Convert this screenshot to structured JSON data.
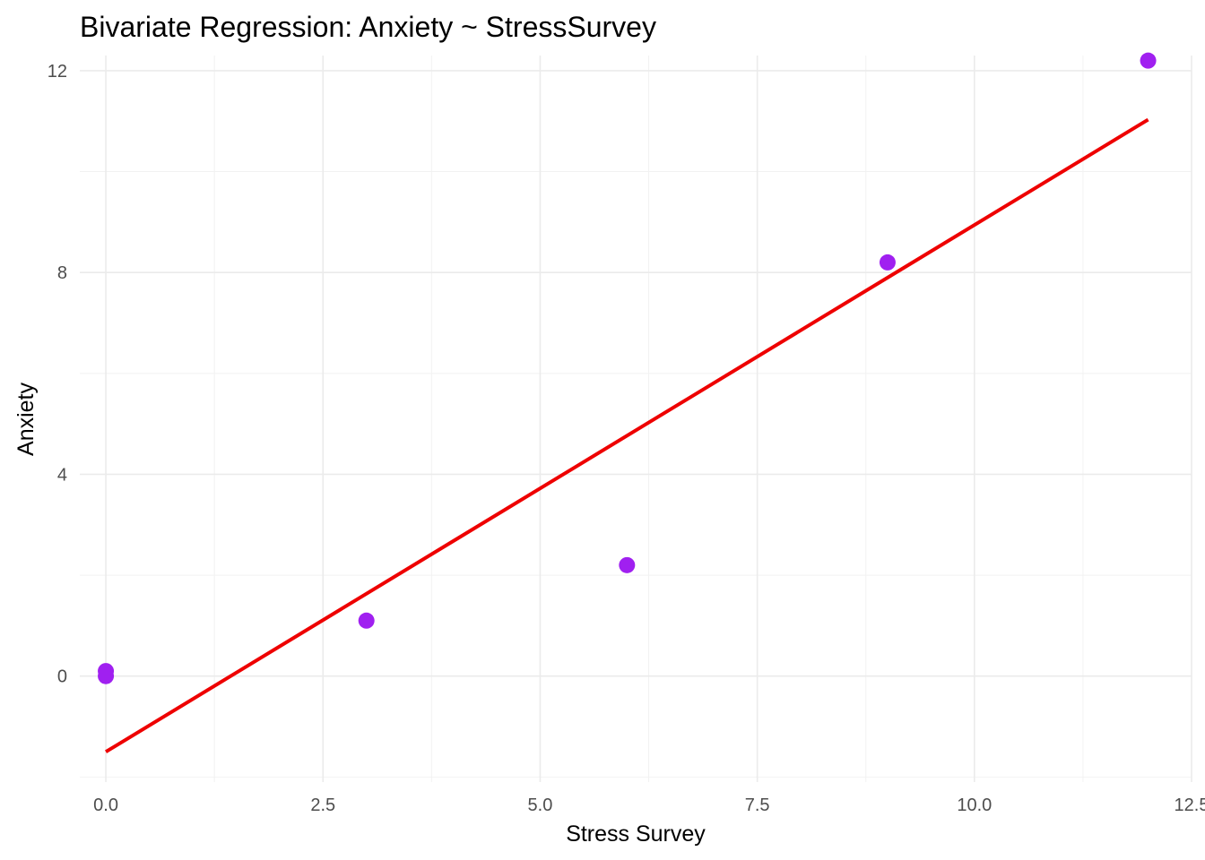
{
  "chart_data": {
    "type": "scatter",
    "title": "Bivariate Regression: Anxiety ~ StressSurvey",
    "xlabel": "Stress Survey",
    "ylabel": "Anxiety",
    "xlim": [
      -0.3,
      12.5
    ],
    "ylim": [
      -2.1,
      12.3
    ],
    "x_ticks": [
      0.0,
      2.5,
      5.0,
      7.5,
      10.0,
      12.5
    ],
    "x_tick_labels": [
      "0.0",
      "2.5",
      "5.0",
      "7.5",
      "10.0",
      "12.5"
    ],
    "y_ticks": [
      0,
      4,
      8,
      12
    ],
    "y_tick_labels": [
      "0",
      "4",
      "8",
      "12"
    ],
    "grid": true,
    "points": {
      "x": [
        0,
        0,
        3,
        6,
        9,
        12
      ],
      "y": [
        0.1,
        0.0,
        1.1,
        2.2,
        8.2,
        12.2
      ],
      "color": "#a020f0"
    },
    "regression_line": {
      "x": [
        0,
        12
      ],
      "y": [
        -1.5,
        11.03
      ],
      "color": "#ee0000"
    }
  }
}
